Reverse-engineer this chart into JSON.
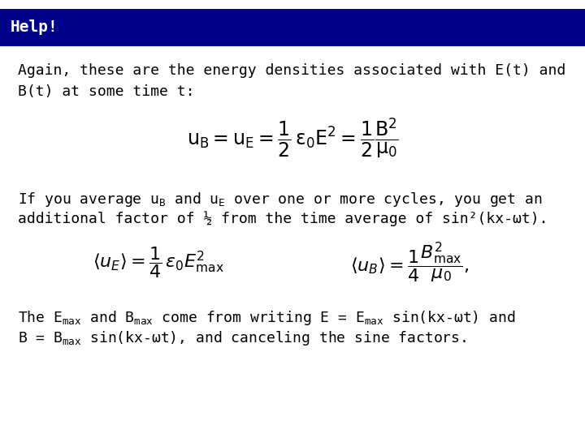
{
  "title": "Help!",
  "title_bg": "#00008B",
  "title_color": "#FFFFFF",
  "title_fontsize": 14,
  "body_fontsize": 13,
  "math_fontsize": 14,
  "bg_color": "#FFFFFF",
  "text_color": "#000000",
  "para1_line1": "Again, these are the energy densities associated with E(t) and",
  "para1_line2": "B(t) at some time t:",
  "para2_line1": "If you average uᴀ and uᴇ over one or more cycles, you get an",
  "para2_line2": "additional factor of ½ from the time average of sin²(kx-ωt).",
  "para3_line1": "The Eₘₐˣ and Bₘₐˣ come from writing E = Eₘₐˣ sin(kx-ωt) and",
  "para3_line2": "B = Bₘₐˣ sin(kx-ωt), and canceling the sine factors."
}
